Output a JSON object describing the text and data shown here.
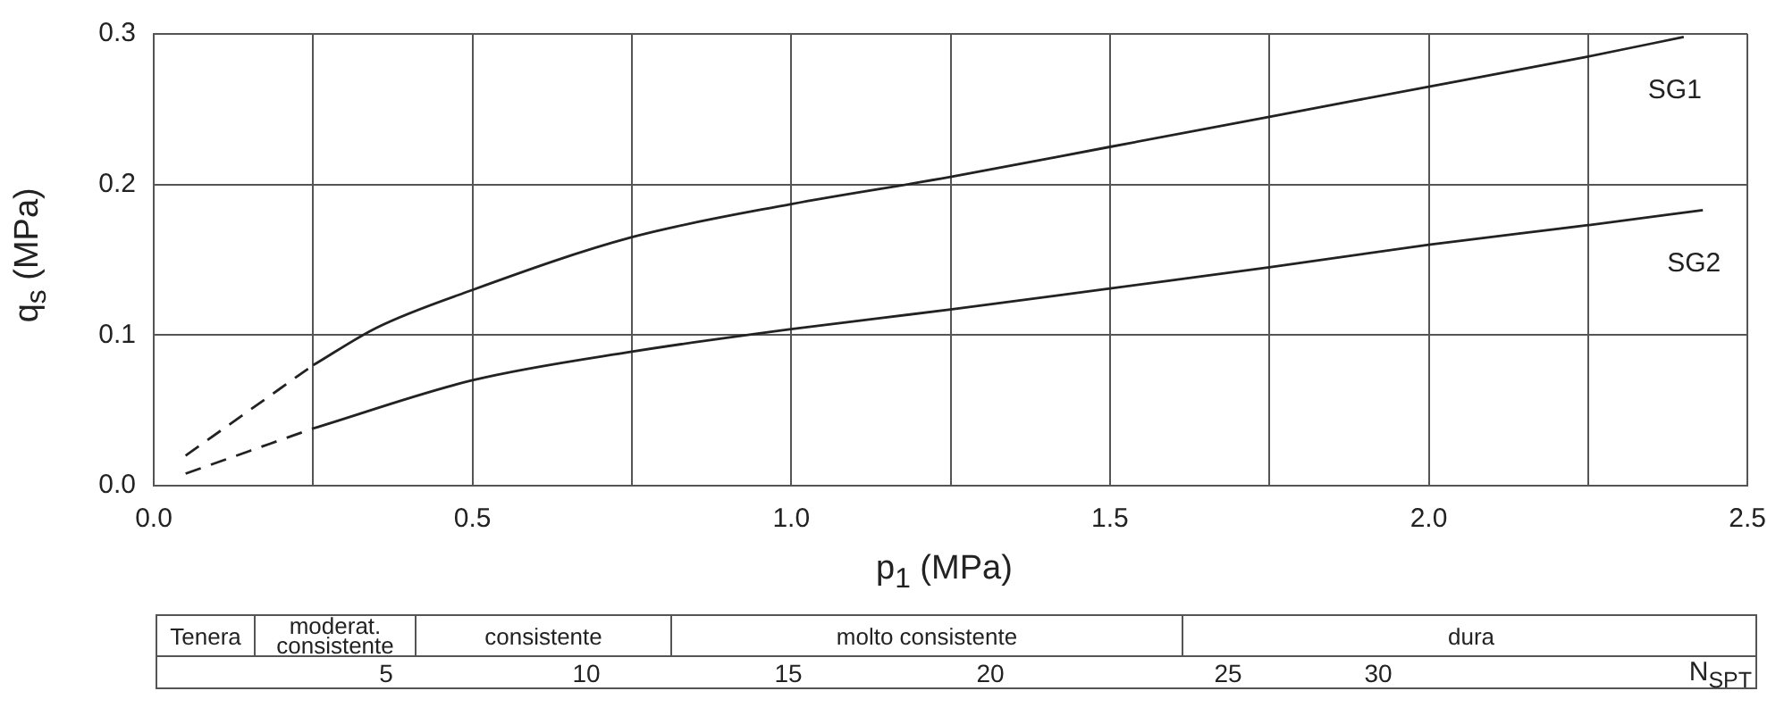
{
  "chart_data": {
    "type": "line",
    "xlabel": "p$_{1}$ (MPa)",
    "ylabel": "q$_{s}$ (MPa)",
    "xlim": [
      0,
      2.5
    ],
    "ylim": [
      0,
      0.3
    ],
    "xticks": [
      {
        "value": 0,
        "label": "0.0"
      },
      {
        "value": 0.25,
        "label": null
      },
      {
        "value": 0.5,
        "label": "0.5"
      },
      {
        "value": 0.75,
        "label": null
      },
      {
        "value": 1,
        "label": "1.0"
      },
      {
        "value": 1.25,
        "label": null
      },
      {
        "value": 1.5,
        "label": "1.5"
      },
      {
        "value": 1.75,
        "label": null
      },
      {
        "value": 2,
        "label": "2.0"
      },
      {
        "value": 2.25,
        "label": null
      },
      {
        "value": 2.5,
        "label": "2.5"
      }
    ],
    "yticks": [
      {
        "value": 0,
        "label": "0.0"
      },
      {
        "value": 0.1,
        "label": "0.1"
      },
      {
        "value": 0.2,
        "label": "0.2"
      },
      {
        "value": 0.3,
        "label": "0.3"
      }
    ],
    "grid": true,
    "legend": false,
    "marker": "none",
    "series": [
      {
        "color": "#222222",
        "line_style": "dashed",
        "x": [
          0.05,
          0.15,
          0.25
        ],
        "values": [
          0.02,
          0.05,
          0.08
        ]
      },
      {
        "name": "SG1",
        "color": "#222222",
        "line_style": "solid",
        "x": [
          0.25,
          0.35,
          0.5,
          0.75,
          1.0,
          1.25,
          1.5,
          1.75,
          2.0,
          2.25,
          2.4
        ],
        "values": [
          0.08,
          0.105,
          0.13,
          0.165,
          0.187,
          0.205,
          0.225,
          0.245,
          0.265,
          0.285,
          0.298
        ]
      },
      {
        "color": "#222222",
        "line_style": "dashed",
        "x": [
          0.05,
          0.15,
          0.25
        ],
        "values": [
          0.008,
          0.023,
          0.038
        ]
      },
      {
        "name": "SG2",
        "color": "#222222",
        "line_style": "solid",
        "x": [
          0.25,
          0.5,
          0.75,
          1.0,
          1.25,
          1.5,
          1.75,
          2.0,
          2.25,
          2.43
        ],
        "values": [
          0.038,
          0.07,
          0.089,
          0.104,
          0.117,
          0.131,
          0.145,
          0.16,
          0.173,
          0.183
        ]
      }
    ],
    "annotations": [
      "Tenera",
      "moderat. consistente",
      "consistente",
      "molto consistente",
      "dura",
      "5",
      "10",
      "15",
      "20",
      "25",
      "30",
      "N$_{SPT}$"
    ]
  }
}
